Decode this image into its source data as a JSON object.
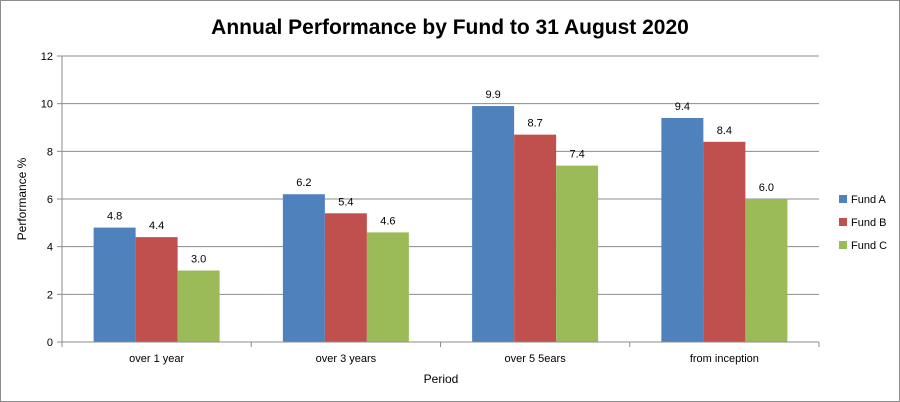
{
  "chart_data": {
    "type": "bar",
    "title": "Annual Performance by Fund to 31 August 2020",
    "xlabel": "Period",
    "ylabel": "Performance %",
    "categories": [
      "over 1 year",
      "over 3 years",
      "over 5 5ears",
      "from inception"
    ],
    "series": [
      {
        "name": "Fund A",
        "color": "#4f81bd",
        "values": [
          4.8,
          6.2,
          9.9,
          9.4
        ],
        "labels": [
          "4.8",
          "6.2",
          "9.9",
          "9.4"
        ]
      },
      {
        "name": "Fund B",
        "color": "#c0504d",
        "values": [
          4.4,
          5.4,
          8.7,
          8.4
        ],
        "labels": [
          "4.4",
          "5.4",
          "8.7",
          "8.4"
        ]
      },
      {
        "name": "Fund C",
        "color": "#9bbb59",
        "values": [
          3.0,
          4.6,
          7.4,
          6.0
        ],
        "labels": [
          "3.0",
          "4.6",
          "7.4",
          "6.0"
        ]
      }
    ],
    "ylim": [
      0,
      12
    ],
    "yticks": [
      "0",
      "2",
      "4",
      "6",
      "8",
      "10",
      "12"
    ],
    "grid": true,
    "legend_position": "right"
  }
}
